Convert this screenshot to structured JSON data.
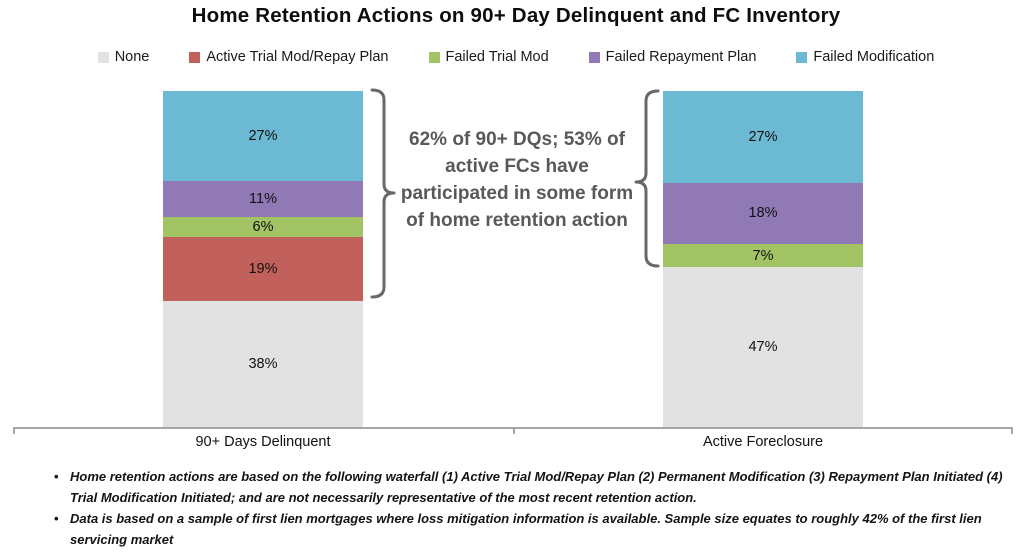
{
  "title": "Home Retention Actions on 90+ Day Delinquent and FC Inventory",
  "legend": [
    {
      "label": "None",
      "color": "#E2E2E2"
    },
    {
      "label": "Active Trial Mod/Repay Plan",
      "color": "#C2615C"
    },
    {
      "label": "Failed Trial Mod",
      "color": "#A3C465"
    },
    {
      "label": "Failed Repayment Plan",
      "color": "#9179B5"
    },
    {
      "label": "Failed Modification",
      "color": "#6CB9D3"
    }
  ],
  "annotation": "62% of 90+ DQs; 53% of active FCs have participated in some form of home retention action",
  "chart_data": {
    "type": "bar",
    "stacked": true,
    "unit": "%",
    "title": "Home Retention Actions on 90+ Day Delinquent and FC Inventory",
    "categories": [
      "90+ Days Delinquent",
      "Active Foreclosure"
    ],
    "series": [
      {
        "name": "None",
        "color": "#E2E2E2",
        "values": [
          38,
          47
        ]
      },
      {
        "name": "Active Trial Mod/Repay Plan",
        "color": "#C2615C",
        "values": [
          19,
          0
        ]
      },
      {
        "name": "Failed Trial Mod",
        "color": "#A3C465",
        "values": [
          6,
          7
        ]
      },
      {
        "name": "Failed Repayment Plan",
        "color": "#9179B5",
        "values": [
          11,
          18
        ]
      },
      {
        "name": "Failed Modification",
        "color": "#6CB9D3",
        "values": [
          27,
          27
        ]
      }
    ],
    "data_labels": true,
    "ylim": [
      0,
      100
    ],
    "grid": false,
    "legend_position": "top",
    "annotations": [
      "62% of 90+ DQs; 53% of active FCs have participated in some form of home retention action"
    ]
  },
  "footnotes": [
    "Home retention actions are based on the following waterfall (1) Active Trial Mod/Repay Plan (2) Permanent Modification (3) Repayment Plan Initiated (4) Trial Modification Initiated; and are not necessarily representative of the most recent retention action.",
    "Data is based on a sample of first lien mortgages where loss mitigation information is available.  Sample size equates to roughly 42% of the first lien servicing market"
  ]
}
